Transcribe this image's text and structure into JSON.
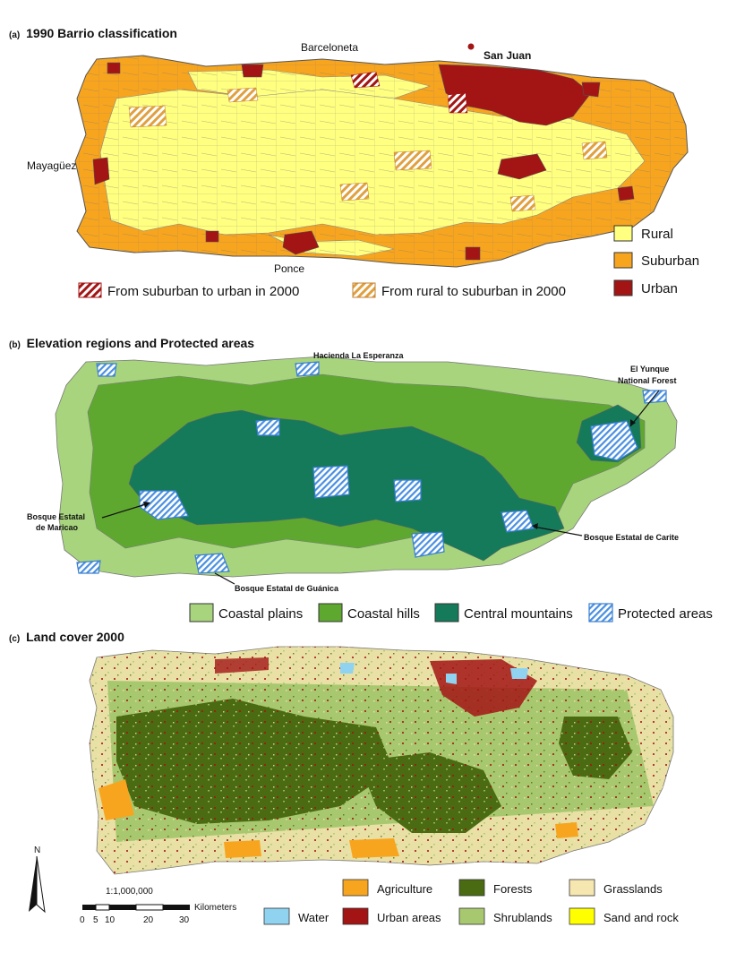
{
  "panel_a": {
    "title_prefix": "(a)",
    "title": "1990 Barrio classification",
    "places": {
      "barceloneta": "Barceloneta",
      "san_juan": "San Juan",
      "mayaguez": "Mayagüez",
      "ponce": "Ponce"
    },
    "legend": [
      {
        "label": "Rural",
        "color": "#ffff80"
      },
      {
        "label": "Suburban",
        "color": "#f7a51f"
      },
      {
        "label": "Urban",
        "color": "#a31515"
      }
    ],
    "hatch_legend": [
      {
        "label": "From suburban to urban in 2000",
        "color": "#a31515"
      },
      {
        "label": "From rural to suburban in 2000",
        "color": "#e0a040"
      }
    ]
  },
  "panel_b": {
    "title_prefix": "(b)",
    "title": "Elevation regions and Protected areas",
    "callouts": {
      "hacienda": "Hacienda La Esperanza",
      "yunque_1": "El Yunque",
      "yunque_2": "National Forest",
      "maricao_1": "Bosque Estatal",
      "maricao_2": "de Maricao",
      "carite": "Bosque Estatal de Carite",
      "guanica": "Bosque Estatal de Guánica"
    },
    "legend": [
      {
        "label": "Coastal plains",
        "color": "#a8d47e"
      },
      {
        "label": "Coastal hills",
        "color": "#5fa830"
      },
      {
        "label": "Central mountains",
        "color": "#157a5a"
      },
      {
        "label": "Protected areas",
        "color": "#4a8fe0"
      }
    ]
  },
  "panel_c": {
    "title_prefix": "(c)",
    "title": "Land cover 2000",
    "north": "N",
    "scale_ratio": "1:1,000,000",
    "scale_unit": "Kilometers",
    "scale_ticks": [
      "0",
      "5",
      "10",
      "20",
      "30"
    ],
    "legend": [
      {
        "label": "Agriculture",
        "color": "#f7a51f"
      },
      {
        "label": "Forests",
        "color": "#4a6b12"
      },
      {
        "label": "Grasslands",
        "color": "#f6e6b0"
      },
      {
        "label": "Water",
        "color": "#8fd3f0"
      },
      {
        "label": "Urban areas",
        "color": "#a31515"
      },
      {
        "label": "Shrublands",
        "color": "#a8c870"
      },
      {
        "label": "Sand and rock",
        "color": "#ffff00"
      }
    ]
  }
}
